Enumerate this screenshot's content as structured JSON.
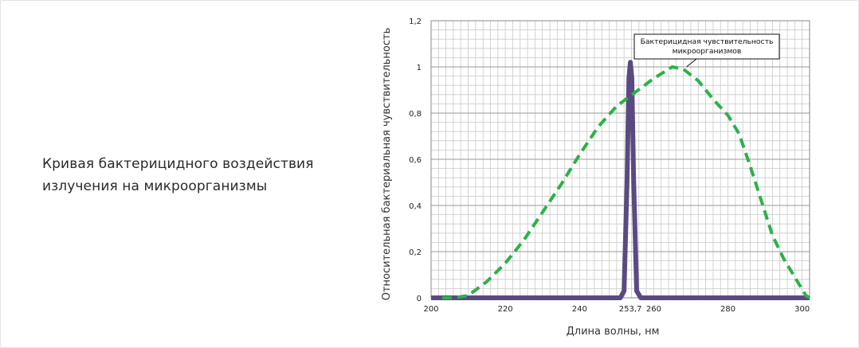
{
  "caption": "Кривая бактерицидного воздействия излучения на микроорганизмы",
  "chart_data": {
    "type": "line",
    "title": "",
    "xlabel": "Длина волны, нм",
    "ylabel": "Относительная бактериальная чувствительность",
    "xlim": [
      200,
      302
    ],
    "ylim": [
      0,
      1.2
    ],
    "x_ticks": [
      {
        "value": 200,
        "label": "200"
      },
      {
        "value": 220,
        "label": "220"
      },
      {
        "value": 240,
        "label": "240"
      },
      {
        "value": 253.7,
        "label": "253,7"
      },
      {
        "value": 260,
        "label": "260"
      },
      {
        "value": 280,
        "label": "280"
      },
      {
        "value": 300,
        "label": "300"
      }
    ],
    "y_ticks": [
      {
        "value": 0,
        "label": "0"
      },
      {
        "value": 0.2,
        "label": "0,2"
      },
      {
        "value": 0.4,
        "label": "0,4"
      },
      {
        "value": 0.6,
        "label": "0,6"
      },
      {
        "value": 0.8,
        "label": "0,8"
      },
      {
        "value": 1.0,
        "label": "1"
      },
      {
        "value": 1.2,
        "label": "1,2"
      }
    ],
    "grid": true,
    "grid_minor_x_step": 2,
    "grid_minor_y_step": 0.04,
    "series": [
      {
        "style": "solid",
        "color": "#5b4a82",
        "points": [
          [
            200,
            0
          ],
          [
            251,
            0
          ],
          [
            252,
            0.03
          ],
          [
            252.8,
            0.5
          ],
          [
            253.3,
            0.95
          ],
          [
            253.7,
            1.02
          ],
          [
            254.1,
            0.95
          ],
          [
            254.6,
            0.5
          ],
          [
            255.4,
            0.03
          ],
          [
            256.5,
            0
          ],
          [
            302,
            0
          ]
        ]
      },
      {
        "style": "dashed",
        "color": "#2db04b",
        "points": [
          [
            203,
            0
          ],
          [
            206,
            0
          ],
          [
            210,
            0.01
          ],
          [
            215,
            0.07
          ],
          [
            220,
            0.15
          ],
          [
            225,
            0.25
          ],
          [
            230,
            0.37
          ],
          [
            235,
            0.49
          ],
          [
            240,
            0.62
          ],
          [
            245,
            0.74
          ],
          [
            250,
            0.83
          ],
          [
            255,
            0.89
          ],
          [
            260,
            0.95
          ],
          [
            265,
            1.0
          ],
          [
            268,
            0.99
          ],
          [
            272,
            0.94
          ],
          [
            276,
            0.86
          ],
          [
            280,
            0.79
          ],
          [
            283,
            0.71
          ],
          [
            286,
            0.57
          ],
          [
            289,
            0.42
          ],
          [
            292,
            0.27
          ],
          [
            295,
            0.17
          ],
          [
            298,
            0.09
          ],
          [
            301,
            0.01
          ],
          [
            302,
            0
          ]
        ]
      }
    ],
    "annotations": [
      {
        "lines": [
          "Бактерицидная чувствительность",
          "микроорганизмов"
        ],
        "points_to": [
          268,
          0.99
        ]
      }
    ]
  }
}
